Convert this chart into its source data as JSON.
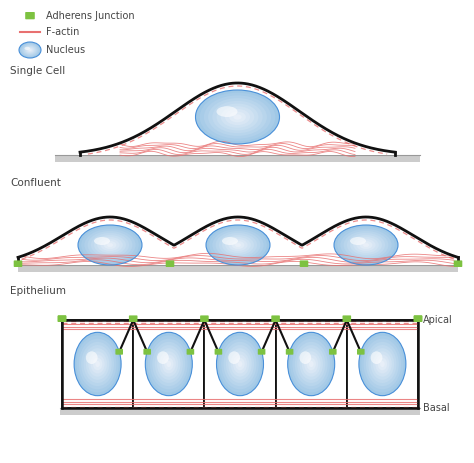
{
  "bg_color": "#ffffff",
  "legend_items": [
    {
      "label": "Adherens Junction",
      "color": "#7dc241"
    },
    {
      "label": "F-actin",
      "color": "#e87070"
    },
    {
      "label": "Nucleus",
      "color": "#5aaee8"
    }
  ],
  "section_labels": [
    "Single Cell",
    "Confluent",
    "Epithelium"
  ],
  "apical_label": "Apical",
  "basal_label": "Basal",
  "cell_outline_color": "#111111",
  "actin_color": "#e87070",
  "nucleus_outer": "#c8e6f8",
  "nucleus_inner": "#e8f4fc",
  "nucleus_edge": "#4a90d9",
  "adherens_color": "#7dc241",
  "substrate_color": "#cccccc",
  "substrate_line_color": "#bbbbbb"
}
